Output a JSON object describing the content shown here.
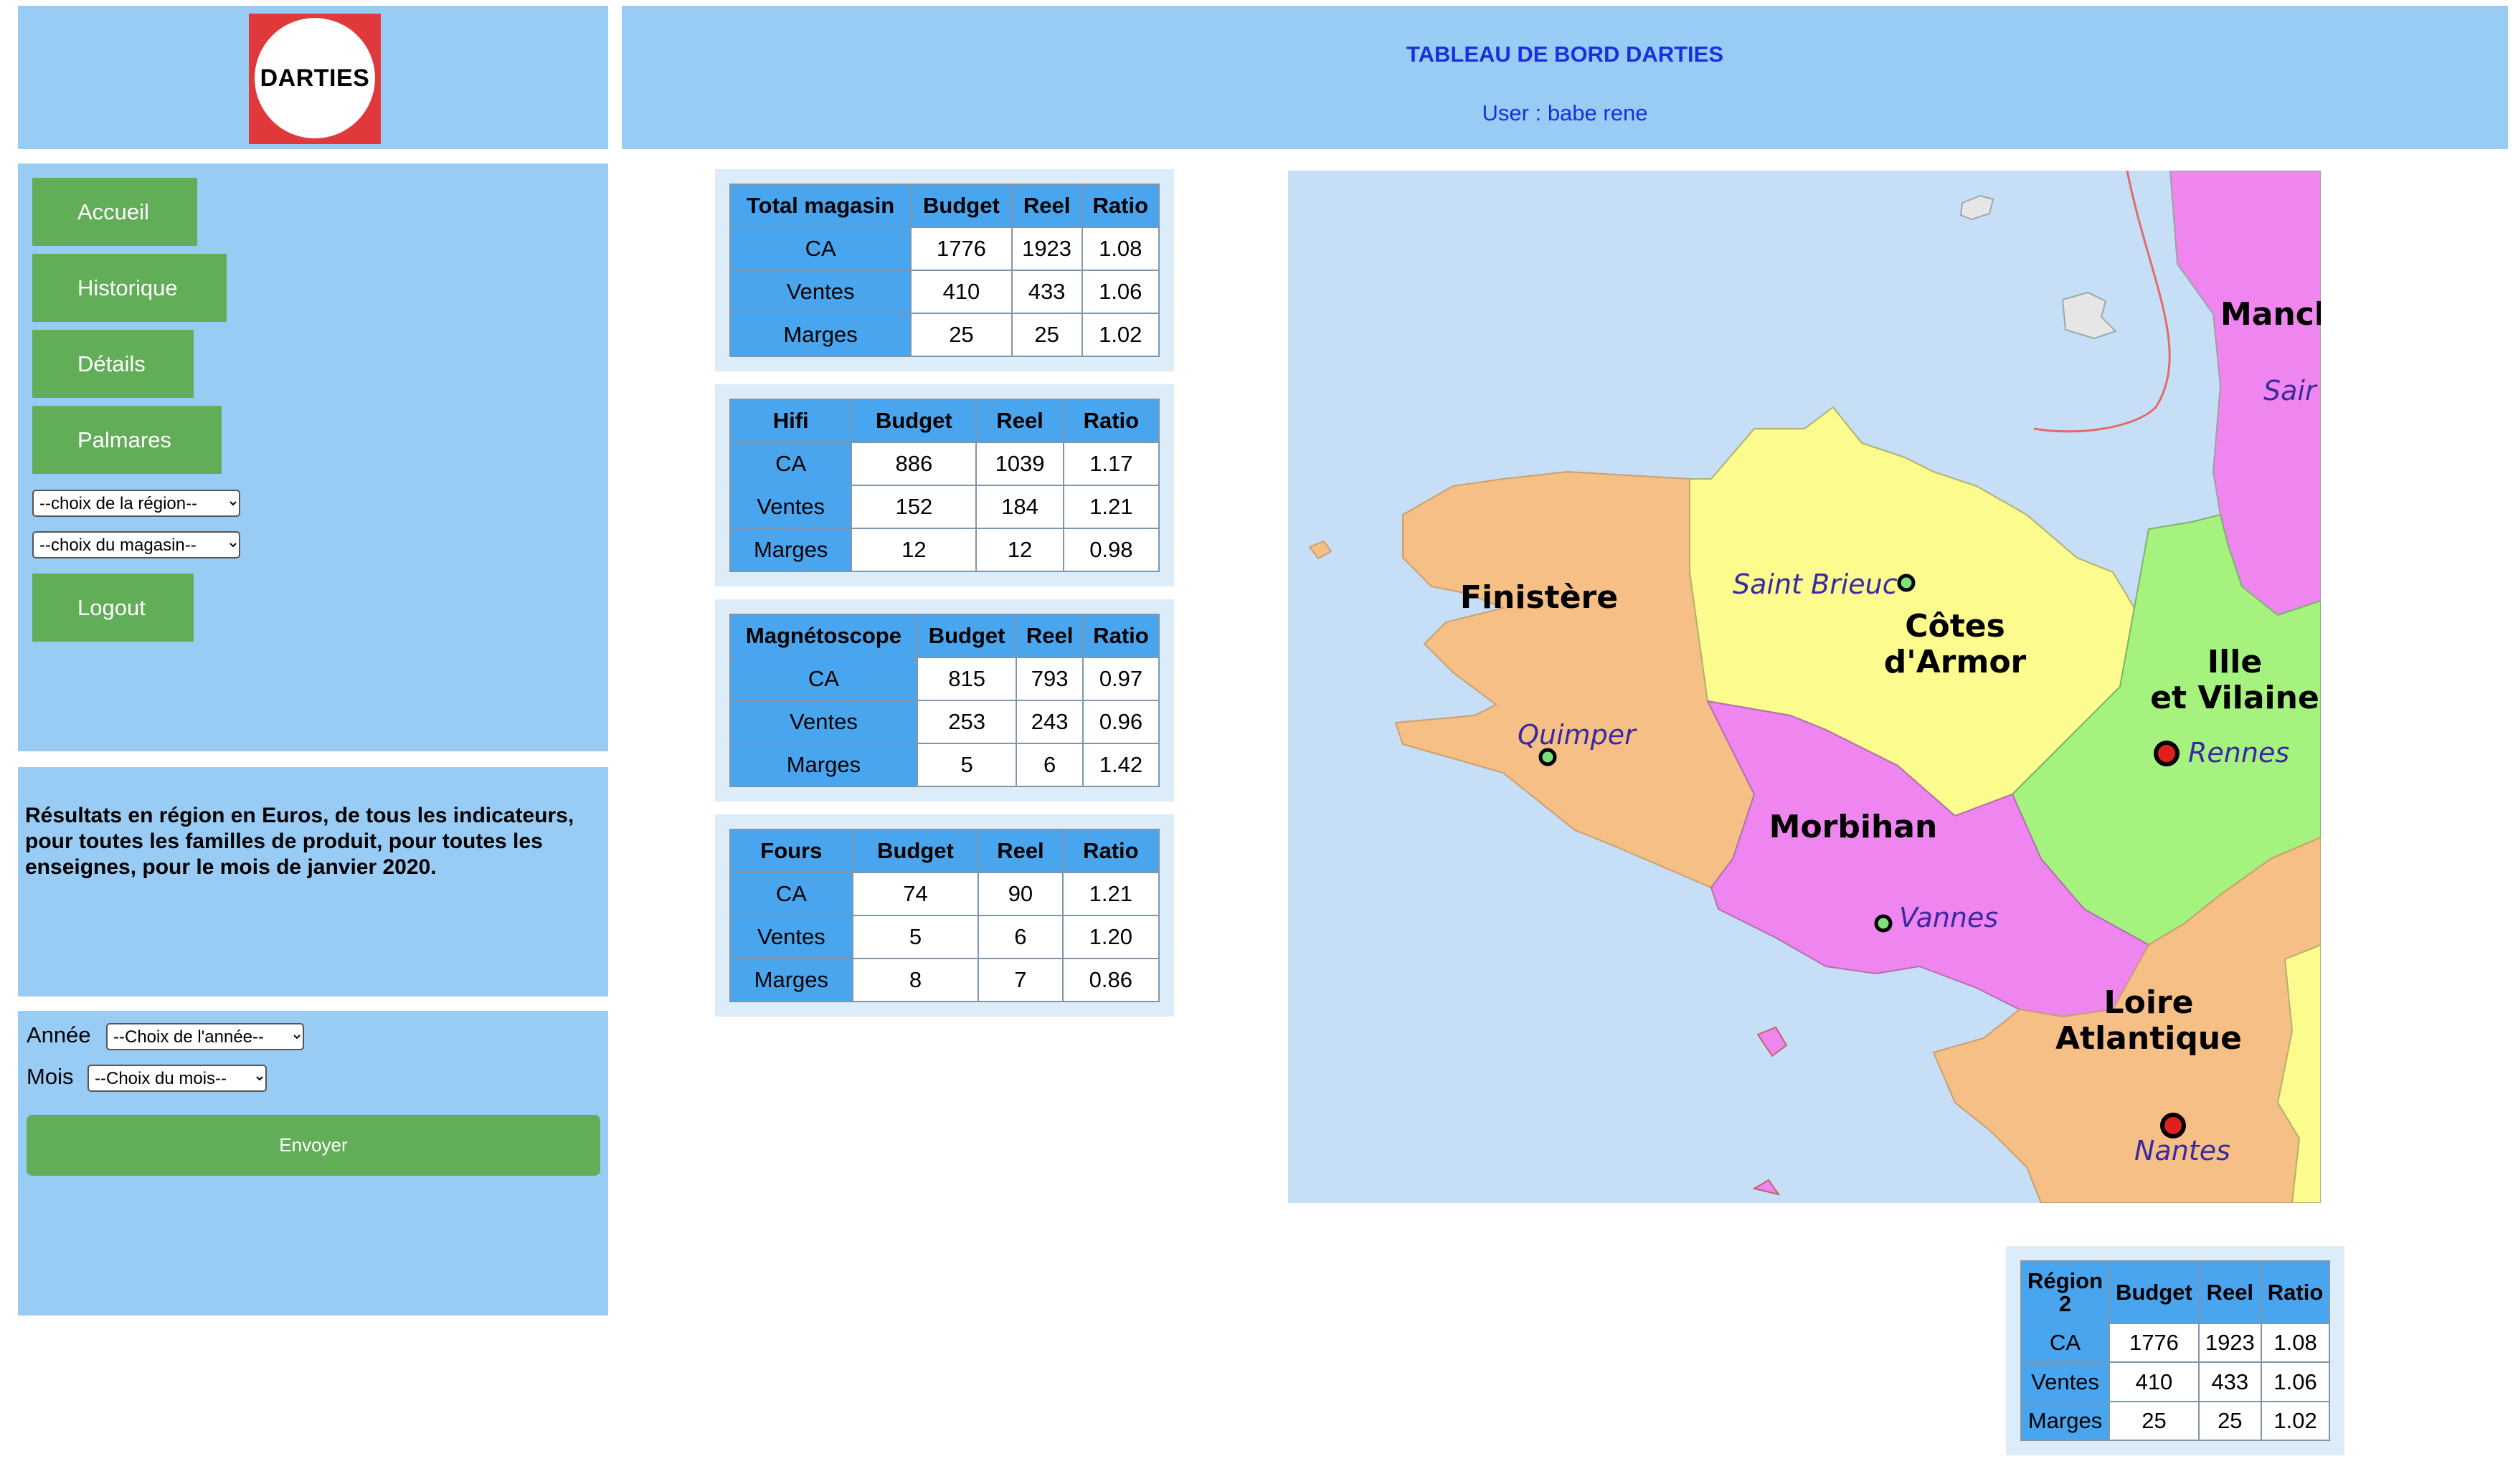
{
  "logo": {
    "text": "DARTIES"
  },
  "header": {
    "title": "TABLEAU DE BORD DARTIES",
    "user": "User : babe rene"
  },
  "nav": {
    "accueil": "Accueil",
    "historique": "Historique",
    "details": "Détails",
    "palmares": "Palmares",
    "region_select": "--choix de la région--",
    "magasin_select": "--choix du magasin--",
    "logout": "Logout"
  },
  "info": {
    "text": "Résultats en région en Euros, de tous les indicateurs, pour toutes les familles de produit, pour toutes les enseignes, pour le mois de janvier 2020."
  },
  "date_form": {
    "annee_label": "Année",
    "annee_select": "--Choix de l'année--",
    "mois_label": "Mois",
    "mois_select": "--Choix du mois--",
    "submit": "Envoyer"
  },
  "tables": {
    "total": {
      "header": [
        "Total magasin",
        "Budget",
        "Reel",
        "Ratio"
      ],
      "rows": [
        [
          "CA",
          "1776",
          "1923",
          "1.08"
        ],
        [
          "Ventes",
          "410",
          "433",
          "1.06"
        ],
        [
          "Marges",
          "25",
          "25",
          "1.02"
        ]
      ]
    },
    "hifi": {
      "header": [
        "Hifi",
        "Budget",
        "Reel",
        "Ratio"
      ],
      "rows": [
        [
          "CA",
          "886",
          "1039",
          "1.17"
        ],
        [
          "Ventes",
          "152",
          "184",
          "1.21"
        ],
        [
          "Marges",
          "12",
          "12",
          "0.98"
        ]
      ]
    },
    "magneto": {
      "header": [
        "Magnétoscope",
        "Budget",
        "Reel",
        "Ratio"
      ],
      "rows": [
        [
          "CA",
          "815",
          "793",
          "0.97"
        ],
        [
          "Ventes",
          "253",
          "243",
          "0.96"
        ],
        [
          "Marges",
          "5",
          "6",
          "1.42"
        ]
      ]
    },
    "fours": {
      "header": [
        "Fours",
        "Budget",
        "Reel",
        "Ratio"
      ],
      "rows": [
        [
          "CA",
          "74",
          "90",
          "1.21"
        ],
        [
          "Ventes",
          "5",
          "6",
          "1.20"
        ],
        [
          "Marges",
          "8",
          "7",
          "0.86"
        ]
      ]
    },
    "region": {
      "header": [
        "Région 2",
        "Budget",
        "Reel",
        "Ratio"
      ],
      "rows": [
        [
          "CA",
          "1776",
          "1923",
          "1.08"
        ],
        [
          "Ventes",
          "410",
          "433",
          "1.06"
        ],
        [
          "Marges",
          "25",
          "25",
          "1.02"
        ]
      ]
    }
  },
  "map": {
    "labels": {
      "finistere": "Finistère",
      "cotes_1": "Côtes",
      "cotes_2": "d'Armor",
      "ille_1": "Ille",
      "ille_2": "et Vilaine",
      "morbihan": "Morbihan",
      "loire_1": "Loire",
      "loire_2": "Atlantique",
      "manche": "Manch",
      "saint": "Sair",
      "saint_brieuc": "Saint Brieuc",
      "quimper": "Quimper",
      "rennes": "Rennes",
      "vannes": "Vannes",
      "nantes": "Nantes"
    },
    "colors": {
      "sea": "#c6dff6",
      "finistere": "#f6bf86",
      "cotes": "#fbfb8e",
      "ille": "#a5f37e",
      "morbihan": "#ef86ef",
      "loire": "#f6bf86",
      "manche": "#ef86ef"
    }
  }
}
